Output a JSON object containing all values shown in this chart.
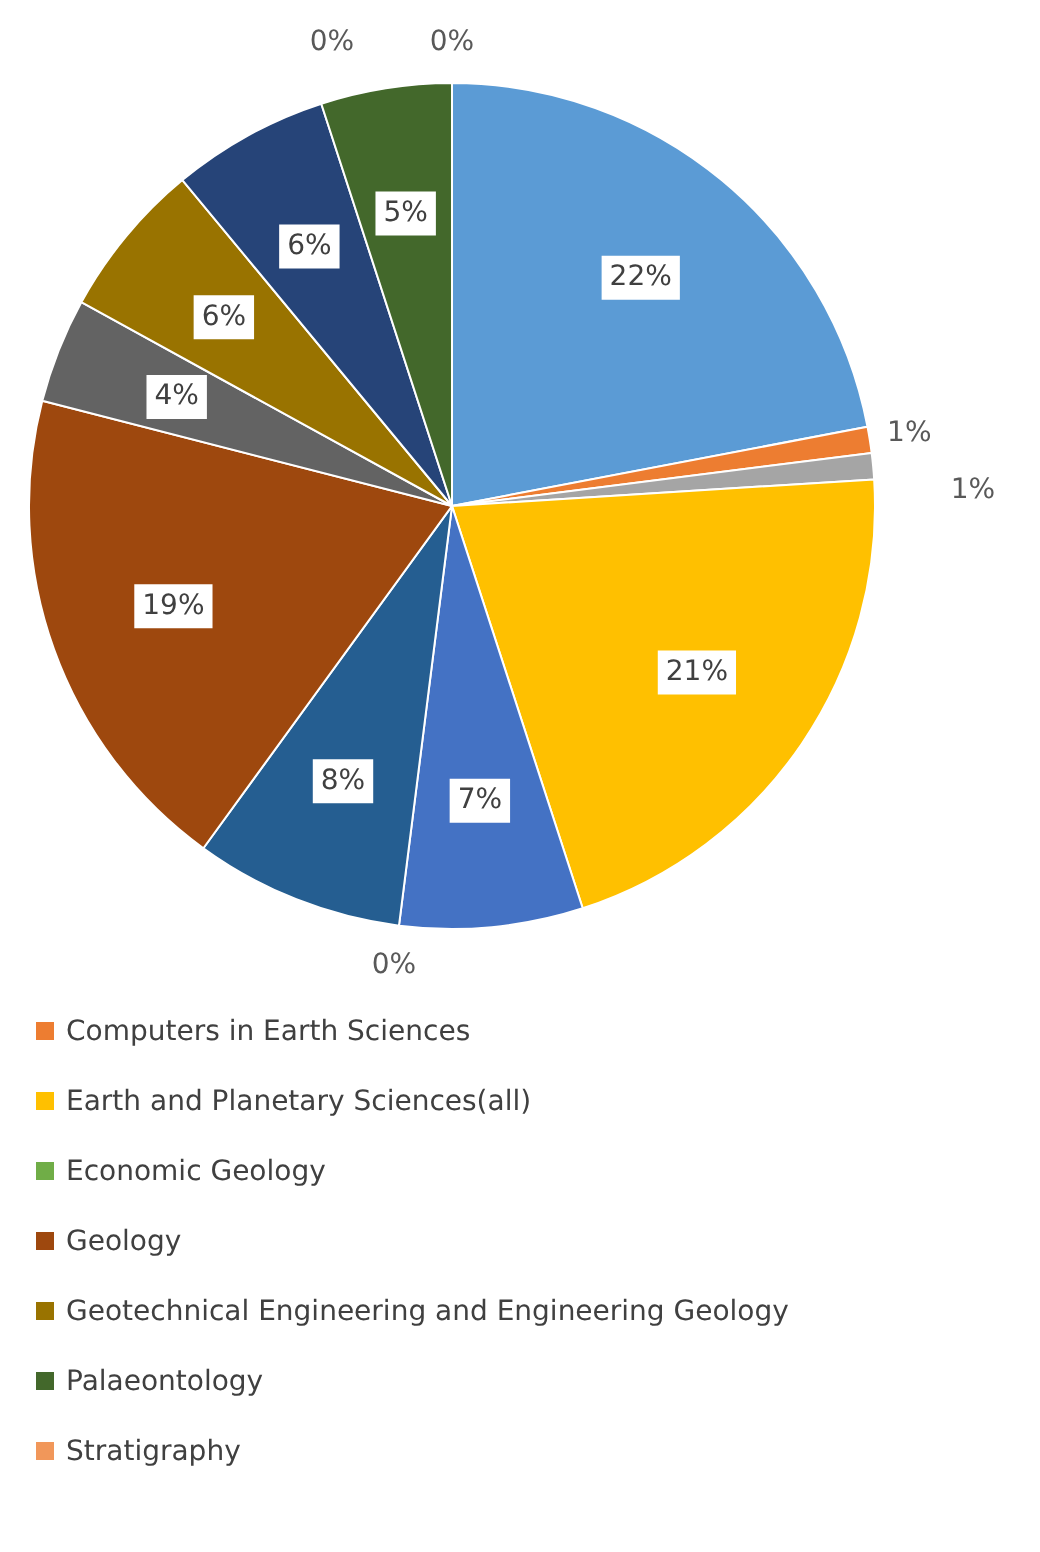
{
  "chart_data": {
    "type": "pie",
    "categories": [
      null,
      "Computers in Earth Sciences",
      null,
      "Earth and Planetary Sciences(all)",
      null,
      "Economic Geology",
      null,
      "Geology",
      null,
      "Geotechnical Engineering and Engineering Geology",
      null,
      "Palaeontology",
      null,
      "Stratigraphy"
    ],
    "values": [
      22,
      1,
      1,
      21,
      7,
      0,
      8,
      19,
      4,
      6,
      6,
      5,
      0,
      0
    ],
    "value_labels": [
      "22%",
      "1%",
      "1%",
      "21%",
      "7%",
      "0%",
      "8%",
      "19%",
      "4%",
      "6%",
      "6%",
      "5%",
      "0%",
      "0%"
    ],
    "colors": [
      "#5b9bd5",
      "#ed7d31",
      "#a5a5a5",
      "#ffc000",
      "#4472c4",
      "#70ad47",
      "#255e91",
      "#9e480e",
      "#636363",
      "#997300",
      "#264478",
      "#43682b",
      "#7cafdd",
      "#f1975a"
    ],
    "legend": "bottom"
  }
}
